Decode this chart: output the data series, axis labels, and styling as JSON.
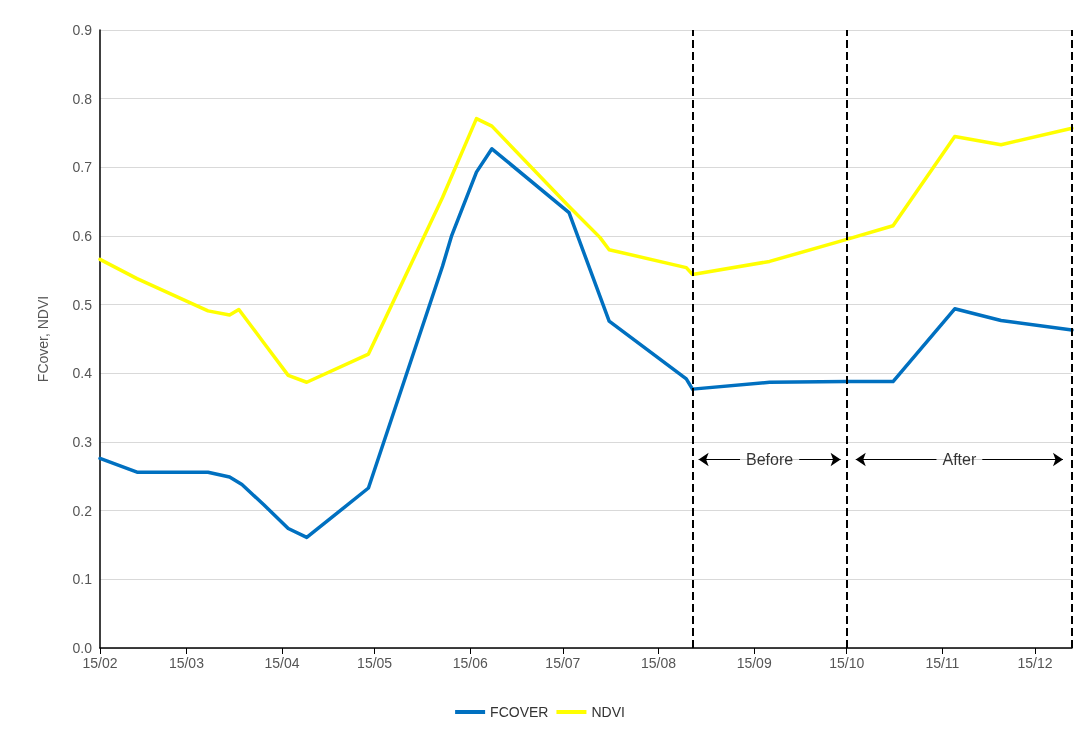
{
  "chart_data": {
    "type": "line",
    "ylabel": "FCover, NDVI",
    "xlim": [
      "--02-15",
      "--12-27"
    ],
    "xticks": [
      {
        "value": "--02-15",
        "label": "15/02"
      },
      {
        "value": "--03-15",
        "label": "15/03"
      },
      {
        "value": "--04-15",
        "label": "15/04"
      },
      {
        "value": "--05-15",
        "label": "15/05"
      },
      {
        "value": "--06-15",
        "label": "15/06"
      },
      {
        "value": "--07-15",
        "label": "15/07"
      },
      {
        "value": "--08-15",
        "label": "15/08"
      },
      {
        "value": "--09-15",
        "label": "15/09"
      },
      {
        "value": "--10-15",
        "label": "15/10"
      },
      {
        "value": "--11-15",
        "label": "15/11"
      },
      {
        "value": "--12-15",
        "label": "15/12"
      }
    ],
    "ylim": [
      0,
      0.9
    ],
    "yticks": [
      {
        "value": 0,
        "label": "0.0"
      },
      0.1,
      0.2,
      0.3,
      0.4,
      0.5,
      0.6,
      0.7,
      0.8,
      0.9
    ],
    "grid": "y",
    "legend": "bottom",
    "marker": "none",
    "line_style": "solid",
    "series": [
      {
        "name": "FCOVER",
        "color": "#0070c0",
        "x": [
          "--02-15",
          "--02-27",
          "--03-22",
          "--03-29",
          "--04-02",
          "--04-09",
          "--04-17",
          "--04-23",
          "--05-13",
          "--06-06",
          "--06-09",
          "--06-17",
          "--06-22",
          "--07-17",
          "--07-30",
          "--08-24",
          "--08-26",
          "--09-20",
          "--10-15",
          "--10-30",
          "--11-19",
          "--12-04",
          "--12-27"
        ],
        "values": [
          0.276,
          0.256,
          0.256,
          0.249,
          0.238,
          0.209,
          0.174,
          0.161,
          0.233,
          0.556,
          0.601,
          0.693,
          0.727,
          0.634,
          0.476,
          0.392,
          0.377,
          0.387,
          0.388,
          0.388,
          0.494,
          0.477,
          0.463
        ]
      },
      {
        "name": "NDVI",
        "color": "#ffff00",
        "x": [
          "--02-15",
          "--02-27",
          "--03-22",
          "--03-29",
          "--04-01",
          "--04-09",
          "--04-17",
          "--04-23",
          "--05-13",
          "--06-06",
          "--06-17",
          "--06-22",
          "--07-17",
          "--07-27",
          "--07-30",
          "--08-24",
          "--08-26",
          "--09-20",
          "--10-15",
          "--10-30",
          "--11-19",
          "--12-04",
          "--12-27"
        ],
        "values": [
          0.566,
          0.538,
          0.491,
          0.485,
          0.493,
          0.445,
          0.397,
          0.387,
          0.428,
          0.656,
          0.771,
          0.76,
          0.643,
          0.598,
          0.58,
          0.554,
          0.544,
          0.563,
          0.595,
          0.615,
          0.745,
          0.733,
          0.757
        ]
      }
    ],
    "ref_lines": [
      {
        "axis": "x",
        "value": "--08-26",
        "label": null,
        "color": "#000000",
        "line_style": "dashed"
      },
      {
        "axis": "x",
        "value": "--10-15",
        "label": null,
        "color": "#000000",
        "line_style": "dashed"
      },
      {
        "axis": "x",
        "value": "--12-27",
        "label": null,
        "color": "#000000",
        "line_style": "dashed"
      }
    ],
    "annotations": [
      "Before",
      "After"
    ]
  }
}
